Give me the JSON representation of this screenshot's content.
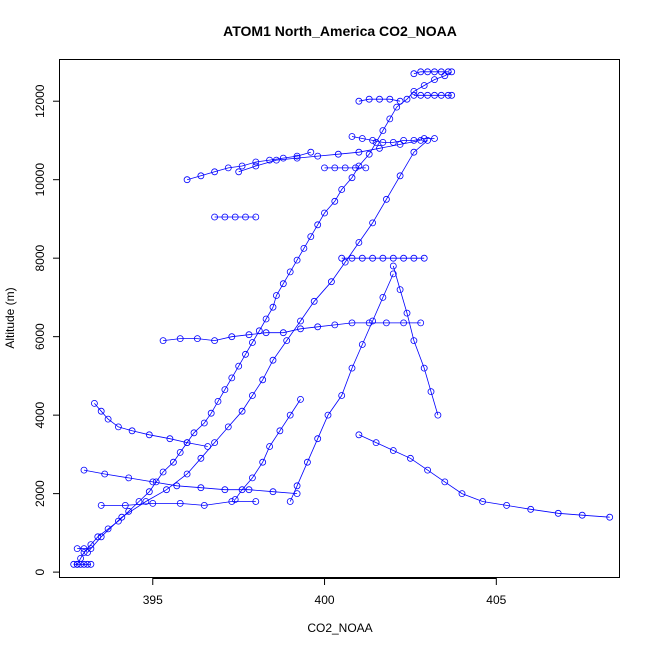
{
  "chart_data": {
    "type": "scatter",
    "title": "ATOM1 North_America CO2_NOAA",
    "xlabel": "CO2_NOAA",
    "ylabel": "Altitude (m)",
    "xlim": [
      392.3,
      408.6
    ],
    "ylim": [
      -150,
      13050
    ],
    "xticks": [
      395,
      400,
      405
    ],
    "xtick_labels": [
      "395",
      "400",
      "405"
    ],
    "yticks": [
      0,
      2000,
      4000,
      6000,
      8000,
      10000,
      12000
    ],
    "ytick_labels": [
      "0",
      "2000",
      "4000",
      "6000",
      "8000",
      "10000",
      "12000"
    ],
    "grid": false,
    "legend": "none",
    "marker": "open-circle",
    "connect_points": true,
    "color": "#0000ff",
    "series": [
      {
        "x": [
          392.8,
          392.9,
          393.0,
          393.2,
          393.4,
          393.7,
          394.0,
          394.3,
          394.6,
          394.9,
          395.1,
          395.3,
          395.6,
          395.8,
          396.0,
          396.2,
          396.5,
          396.7,
          396.9,
          397.1,
          397.3,
          397.5,
          397.7,
          397.9,
          398.1,
          398.3,
          398.5,
          398.6,
          398.8,
          399.0,
          399.2,
          399.4,
          399.6,
          399.8,
          400.0,
          400.3,
          400.5,
          400.8,
          401.0,
          401.3,
          401.5,
          401.7,
          401.9,
          402.1,
          402.4,
          402.6,
          402.9,
          403.2,
          403.5,
          403.7
        ],
        "y": [
          200,
          350,
          500,
          700,
          900,
          1100,
          1300,
          1550,
          1800,
          2050,
          2300,
          2550,
          2800,
          3050,
          3300,
          3550,
          3800,
          4050,
          4350,
          4650,
          4950,
          5250,
          5550,
          5850,
          6150,
          6450,
          6750,
          7050,
          7350,
          7650,
          7950,
          8250,
          8550,
          8850,
          9150,
          9450,
          9750,
          10050,
          10350,
          10650,
          10950,
          11250,
          11550,
          11850,
          12050,
          12250,
          12400,
          12550,
          12650,
          12750
        ]
      },
      {
        "x": [
          393.1,
          393.5,
          394.1,
          394.8,
          395.4,
          396.0,
          396.4,
          396.8,
          397.2,
          397.6,
          397.9,
          398.2,
          398.5,
          398.9,
          399.3,
          399.7,
          400.2,
          400.6,
          401.0,
          401.4,
          401.8,
          402.2,
          402.6,
          403.0
        ],
        "y": [
          500,
          900,
          1400,
          1800,
          2100,
          2500,
          2900,
          3300,
          3700,
          4100,
          4500,
          4900,
          5400,
          5900,
          6400,
          6900,
          7400,
          7900,
          8400,
          8900,
          9500,
          10100,
          10700,
          11000
        ]
      },
      {
        "x": [
          397.5,
          398.0,
          398.6,
          399.2,
          399.8,
          400.4,
          401.0,
          401.6,
          402.2,
          402.8
        ],
        "y": [
          10200,
          10350,
          10500,
          10550,
          10600,
          10650,
          10700,
          10800,
          10900,
          11000
        ]
      },
      {
        "x": [
          401.0,
          401.5,
          402.0,
          402.5,
          403.0,
          403.5,
          404.0,
          404.6,
          405.3,
          406.0,
          406.8,
          407.5,
          408.3
        ],
        "y": [
          3500,
          3300,
          3100,
          2900,
          2600,
          2300,
          2000,
          1800,
          1700,
          1600,
          1500,
          1450,
          1400
        ]
      },
      {
        "x": [
          399.0,
          399.2,
          399.5,
          399.8,
          400.1,
          400.5,
          400.8,
          401.1,
          401.4,
          401.7,
          402.0
        ],
        "y": [
          1800,
          2200,
          2800,
          3400,
          4000,
          4500,
          5200,
          5800,
          6400,
          7000,
          7600
        ]
      },
      {
        "x": [
          395.3,
          395.8,
          396.3,
          396.8,
          397.3,
          397.8,
          398.3,
          398.8,
          399.3,
          399.8,
          400.3,
          400.8,
          401.3,
          401.8,
          402.3,
          402.8
        ],
        "y": [
          5900,
          5950,
          5950,
          5900,
          6000,
          6050,
          6100,
          6100,
          6200,
          6250,
          6300,
          6350,
          6350,
          6350,
          6350,
          6350
        ]
      },
      {
        "x": [
          400.5,
          400.8,
          401.1,
          401.4,
          401.7,
          402.0,
          402.3,
          402.6,
          402.9
        ],
        "y": [
          8000,
          8000,
          8000,
          8000,
          8000,
          8000,
          8000,
          8000,
          8000
        ]
      },
      {
        "x": [
          402.6,
          402.8,
          403.0,
          403.2,
          403.4,
          403.6,
          403.7
        ],
        "y": [
          12150,
          12150,
          12150,
          12150,
          12150,
          12150,
          12150
        ]
      },
      {
        "x": [
          402.6,
          402.8,
          403.0,
          403.2,
          403.4,
          403.6
        ],
        "y": [
          12700,
          12750,
          12750,
          12750,
          12750,
          12750
        ]
      },
      {
        "x": [
          401.0,
          401.3,
          401.6,
          401.9,
          402.2
        ],
        "y": [
          12000,
          12050,
          12050,
          12050,
          12000
        ]
      },
      {
        "x": [
          400.8,
          401.1,
          401.4,
          401.7,
          402.0,
          402.3,
          402.6,
          402.9,
          403.2
        ],
        "y": [
          11100,
          11050,
          11000,
          10950,
          10950,
          11000,
          11000,
          11050,
          11050
        ]
      },
      {
        "x": [
          396.8,
          397.1,
          397.4,
          397.7,
          398.0
        ],
        "y": [
          9050,
          9050,
          9050,
          9050,
          9050
        ]
      },
      {
        "x": [
          393.5,
          394.2,
          395.0,
          395.8,
          396.5,
          397.3,
          398.0
        ],
        "y": [
          1700,
          1700,
          1750,
          1750,
          1700,
          1800,
          1800
        ]
      },
      {
        "x": [
          393.0,
          393.6,
          394.3,
          395.0,
          395.7,
          396.4,
          397.1,
          397.8,
          398.5,
          399.2
        ],
        "y": [
          2600,
          2500,
          2400,
          2300,
          2200,
          2150,
          2100,
          2100,
          2050,
          2000
        ]
      },
      {
        "x": [
          396.0,
          396.4,
          396.8,
          397.2,
          397.6,
          398.0,
          398.4,
          398.8,
          399.2,
          399.6
        ],
        "y": [
          10000,
          10100,
          10200,
          10300,
          10350,
          10450,
          10500,
          10550,
          10600,
          10700
        ]
      },
      {
        "x": [
          400.0,
          400.3,
          400.6,
          400.9,
          401.2
        ],
        "y": [
          10300,
          10300,
          10300,
          10300,
          10300
        ]
      },
      {
        "x": [
          402.0,
          402.2,
          402.4,
          402.6,
          402.9,
          403.1,
          403.3
        ],
        "y": [
          7800,
          7200,
          6600,
          5900,
          5200,
          4600,
          4000
        ]
      },
      {
        "x": [
          393.3,
          393.5,
          393.7,
          394.0,
          394.4,
          394.9,
          395.5,
          396.0,
          396.6
        ],
        "y": [
          4300,
          4100,
          3900,
          3700,
          3600,
          3500,
          3400,
          3300,
          3200
        ]
      },
      {
        "x": [
          397.4,
          397.6,
          397.9,
          398.2,
          398.4,
          398.7,
          399.0,
          399.3
        ],
        "y": [
          1850,
          2100,
          2400,
          2800,
          3200,
          3600,
          4000,
          4400
        ]
      },
      {
        "x": [
          392.8,
          393.0,
          393.2
        ],
        "y": [
          600,
          600,
          600
        ]
      },
      {
        "x": [
          392.7,
          392.8,
          392.9,
          393.0,
          393.1,
          393.2
        ],
        "y": [
          200,
          200,
          200,
          200,
          200,
          200
        ]
      }
    ]
  }
}
